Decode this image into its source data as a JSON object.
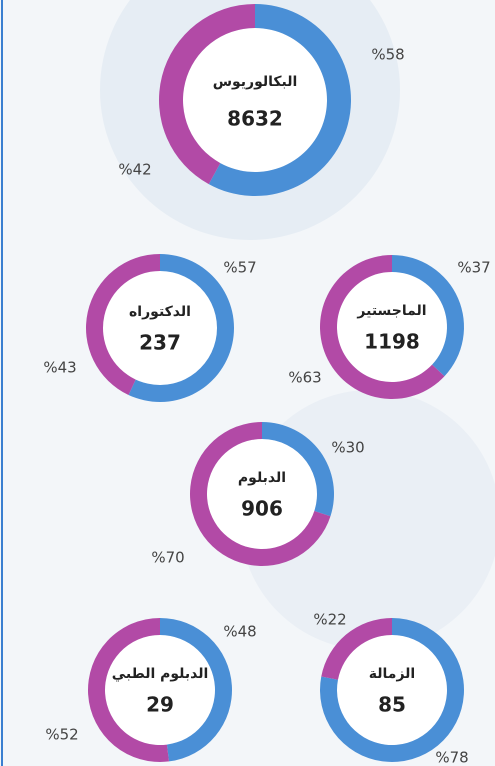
{
  "chart_data": [
    {
      "type": "donut",
      "title": "البكالوريوس",
      "total": 8632,
      "values": [
        58,
        42
      ],
      "value_labels": [
        "%58",
        "%42"
      ],
      "colors": [
        "#4a8fd6",
        "#b24aa6"
      ]
    },
    {
      "type": "donut",
      "title": "الدكتوراه",
      "total": 237,
      "values": [
        57,
        43
      ],
      "value_labels": [
        "%57",
        "%43"
      ],
      "colors": [
        "#4a8fd6",
        "#b24aa6"
      ]
    },
    {
      "type": "donut",
      "title": "الماجستير",
      "total": 1198,
      "values": [
        37,
        63
      ],
      "value_labels": [
        "%37",
        "%63"
      ],
      "colors": [
        "#4a8fd6",
        "#b24aa6"
      ]
    },
    {
      "type": "donut",
      "title": "الدبلوم",
      "total": 906,
      "values": [
        30,
        70
      ],
      "value_labels": [
        "%30",
        "%70"
      ],
      "colors": [
        "#4a8fd6",
        "#b24aa6"
      ]
    },
    {
      "type": "donut",
      "title": "الدبلوم الطبي",
      "total": 29,
      "values": [
        48,
        52
      ],
      "value_labels": [
        "%48",
        "%52"
      ],
      "colors": [
        "#4a8fd6",
        "#b24aa6"
      ]
    },
    {
      "type": "donut",
      "title": "الزمالة",
      "total": 85,
      "values": [
        78,
        22
      ],
      "value_labels": [
        "%78",
        "%22"
      ],
      "colors": [
        "#4a8fd6",
        "#b24aa6"
      ]
    }
  ]
}
